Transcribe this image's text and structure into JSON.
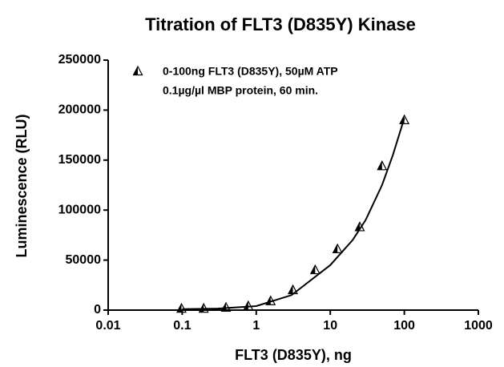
{
  "chart_data": {
    "type": "scatter",
    "title": "Titration of FLT3 (D835Y) Kinase",
    "x_label": "FLT3 (D835Y), ng",
    "y_label": "Luminescence (RLU)",
    "x_scale": "log",
    "xlim": [
      0.01,
      1000
    ],
    "xticks": [
      0.01,
      0.1,
      1,
      10,
      100,
      1000
    ],
    "ylim": [
      0,
      250000
    ],
    "yticks": [
      0,
      50000,
      100000,
      150000,
      200000,
      250000
    ],
    "legend_position": "top-left",
    "annotation": "0.1µg/µl MBP protein, 60 min.",
    "series": [
      {
        "name": "0-100ng FLT3 (D835Y), 50µM ATP",
        "color": "#000000",
        "x": [
          0.0977,
          0.195,
          0.39,
          0.78,
          1.5625,
          3.125,
          6.25,
          12.5,
          25,
          50,
          100
        ],
        "values": [
          1500,
          1500,
          2500,
          4000,
          9000,
          20000,
          40000,
          61000,
          83000,
          144000,
          190000
        ]
      },
      {
        "color": "#000000",
        "x": [
          0.1,
          0.3,
          1,
          3,
          10,
          20,
          30,
          50,
          70,
          100
        ],
        "values": [
          1000,
          1500,
          4000,
          15000,
          45000,
          70000,
          90000,
          125000,
          155000,
          192000
        ]
      }
    ]
  }
}
